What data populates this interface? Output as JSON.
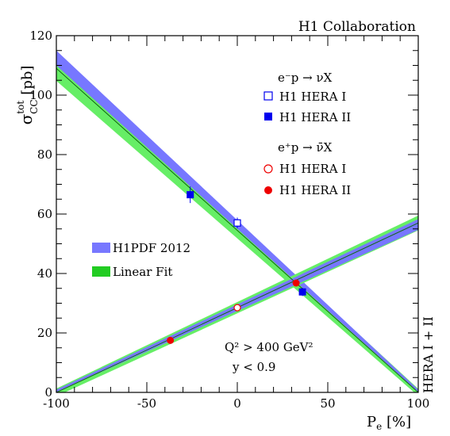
{
  "chart_data": {
    "type": "scatter",
    "collaboration": "H1 Collaboration",
    "side_label": "HERA I + II",
    "xlabel": {
      "main": "P",
      "sub": "e",
      "unit": " [%]"
    },
    "ylabel": {
      "main": "σ",
      "sup": "tot",
      "sub": "CC",
      "unit": " [pb]"
    },
    "xlim": [
      -100,
      100
    ],
    "ylim": [
      0,
      120
    ],
    "xticks": [
      -100,
      -50,
      0,
      50,
      100
    ],
    "yticks": [
      0,
      20,
      40,
      60,
      80,
      100,
      120
    ],
    "colors": {
      "h1pdf": "#7777ff",
      "fit": "#22cc22",
      "fit_band": "#66ee66",
      "electron": "#0000ee",
      "positron": "#ee0000"
    },
    "legend": {
      "header_minus": "e⁻p → νX",
      "header_plus": "e⁺p → ν̄X",
      "h1_hera_1": "H1 HERA I",
      "h1_hera_2": "H1 HERA II",
      "h1pdf": "H1PDF 2012",
      "linear_fit": "Linear Fit"
    },
    "cuts": {
      "q2": "Q² > 400 GeV²",
      "y": "y < 0.9"
    },
    "bands": {
      "electron_h1pdf": {
        "x": [
          -100,
          100
        ],
        "center": [
          112.5,
          0.5
        ],
        "half_width": [
          2.5,
          0.4
        ]
      },
      "electron_fit": {
        "x": [
          -100,
          100
        ],
        "center": [
          109,
          0
        ],
        "half_width": [
          4.2,
          1.2
        ]
      },
      "positron_h1pdf": {
        "x": [
          -100,
          100
        ],
        "center": [
          0.5,
          56.5
        ],
        "half_width": [
          0.4,
          1.8
        ]
      },
      "positron_fit": {
        "x": [
          -100,
          100
        ],
        "center": [
          0,
          57
        ],
        "half_width": [
          1.3,
          2.5
        ]
      }
    },
    "series": [
      {
        "name": "H1 HERA I",
        "process": "electron",
        "marker": "open-square",
        "points": [
          {
            "x": 0,
            "y": 57,
            "err": 1.8
          }
        ]
      },
      {
        "name": "H1 HERA II",
        "process": "electron",
        "marker": "filled-square",
        "points": [
          {
            "x": -26,
            "y": 66.5,
            "err": 2.8
          },
          {
            "x": 36,
            "y": 33.8,
            "err": 1.4
          }
        ]
      },
      {
        "name": "H1 HERA I",
        "process": "positron",
        "marker": "open-circle",
        "points": [
          {
            "x": 0,
            "y": 28.5,
            "err": 1.0
          }
        ]
      },
      {
        "name": "H1 HERA II",
        "process": "positron",
        "marker": "filled-circle",
        "points": [
          {
            "x": -37,
            "y": 17.5,
            "err": 0.8
          },
          {
            "x": 32.5,
            "y": 36.8,
            "err": 1.1
          }
        ]
      }
    ]
  }
}
